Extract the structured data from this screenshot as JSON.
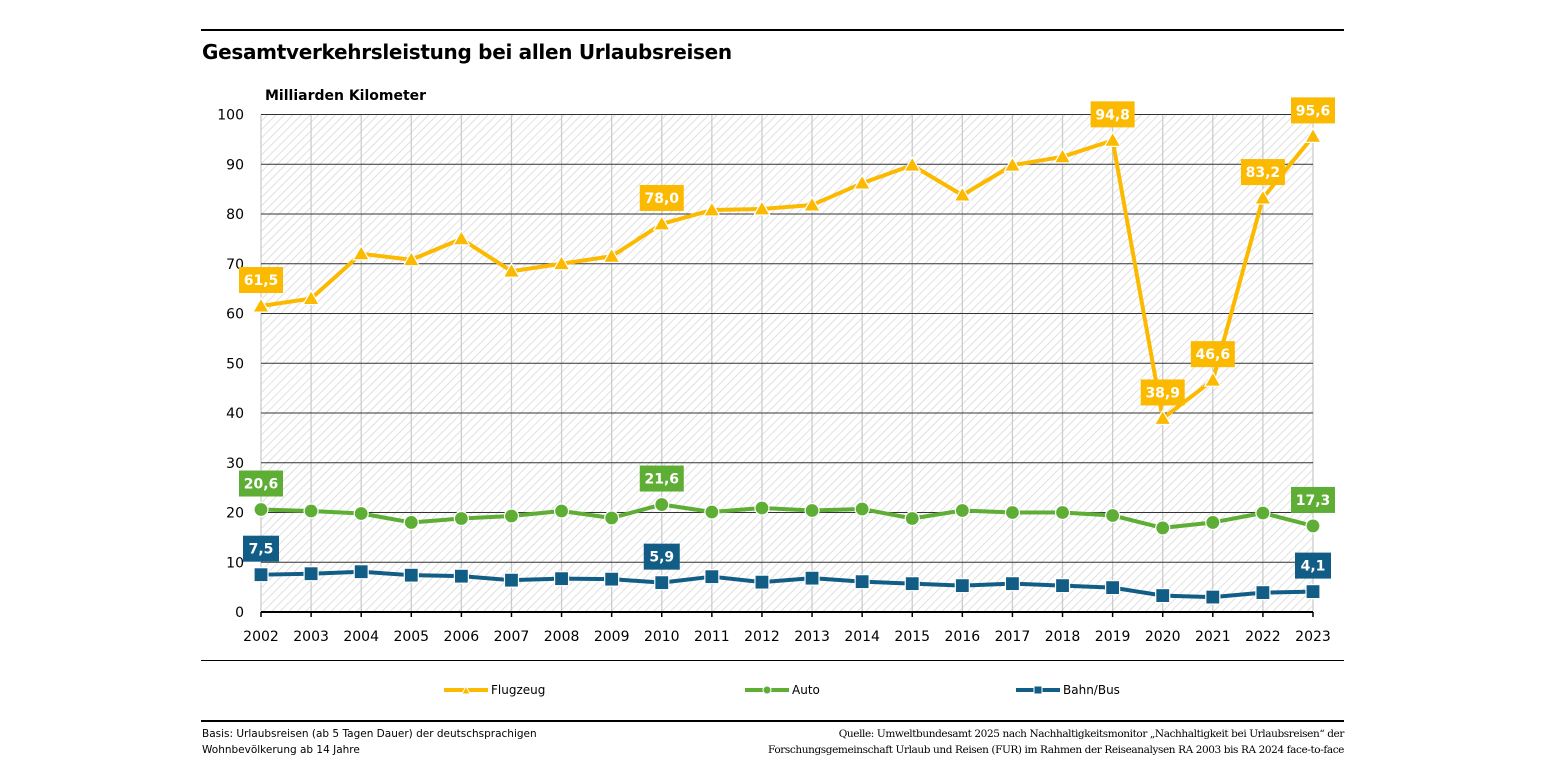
{
  "title": "Gesamtverkehrsleistung bei allen Urlaubsreisen",
  "unit_label": "Milliarden Kilometer",
  "footer": {
    "basis_line1": "Basis: Urlaubsreisen (ab 5 Tagen Dauer) der deutschsprachigen",
    "basis_line2": "Wohnbevölkerung ab 14 Jahre",
    "source_line1": "Quelle: Umweltbundesamt 2025 nach Nachhaltigkeitsmonitor „Nachhaltigkeit bei Urlaubsreisen“ der",
    "source_line2": "Forschungsgemeinschaft Urlaub und Reisen (FUR) im Rahmen der Reiseanalysen RA 2003 bis RA 2024 face-to-face"
  },
  "chart_data": {
    "type": "line",
    "title": "Gesamtverkehrsleistung bei allen Urlaubsreisen",
    "xlabel": "",
    "ylabel": "Milliarden Kilometer",
    "ylim": [
      0,
      100
    ],
    "yticks": [
      0,
      10,
      20,
      30,
      40,
      50,
      60,
      70,
      80,
      90,
      100
    ],
    "grid": true,
    "legend_position": "bottom",
    "categories": [
      "2002",
      "2003",
      "2004",
      "2005",
      "2006",
      "2007",
      "2008",
      "2009",
      "2010",
      "2011",
      "2012",
      "2013",
      "2014",
      "2015",
      "2016",
      "2017",
      "2018",
      "2019",
      "2020",
      "2021",
      "2022",
      "2023"
    ],
    "series": [
      {
        "name": "Flugzeug",
        "color": "#FBB900",
        "marker": "triangle",
        "values": [
          61.5,
          63.0,
          72.0,
          70.8,
          75.0,
          68.5,
          70.0,
          71.5,
          78.0,
          80.8,
          81.0,
          81.8,
          86.2,
          89.8,
          83.8,
          89.8,
          91.5,
          94.8,
          38.9,
          46.6,
          83.2,
          95.6
        ],
        "labels": [
          {
            "index": 0,
            "text": "61,5"
          },
          {
            "index": 8,
            "text": "78,0"
          },
          {
            "index": 17,
            "text": "94,8"
          },
          {
            "index": 18,
            "text": "38,9"
          },
          {
            "index": 19,
            "text": "46,6"
          },
          {
            "index": 20,
            "text": "83,2"
          },
          {
            "index": 21,
            "text": "95,6"
          }
        ]
      },
      {
        "name": "Auto",
        "color": "#5EAD35",
        "marker": "circle",
        "values": [
          20.6,
          20.3,
          19.8,
          18.0,
          18.8,
          19.3,
          20.3,
          18.9,
          21.6,
          20.1,
          20.9,
          20.4,
          20.7,
          18.8,
          20.4,
          20.0,
          20.0,
          19.4,
          16.9,
          18.0,
          19.9,
          17.3
        ],
        "labels": [
          {
            "index": 0,
            "text": "20,6"
          },
          {
            "index": 8,
            "text": "21,6"
          },
          {
            "index": 21,
            "text": "17,3"
          }
        ]
      },
      {
        "name": "Bahn/Bus",
        "color": "#125D86",
        "marker": "square",
        "values": [
          7.5,
          7.7,
          8.1,
          7.4,
          7.2,
          6.4,
          6.7,
          6.6,
          5.9,
          7.1,
          6.0,
          6.8,
          6.1,
          5.7,
          5.3,
          5.7,
          5.3,
          4.9,
          3.3,
          3.0,
          3.9,
          4.1
        ],
        "labels": [
          {
            "index": 0,
            "text": "7,5"
          },
          {
            "index": 8,
            "text": "5,9"
          },
          {
            "index": 21,
            "text": "4,1"
          }
        ]
      }
    ]
  }
}
